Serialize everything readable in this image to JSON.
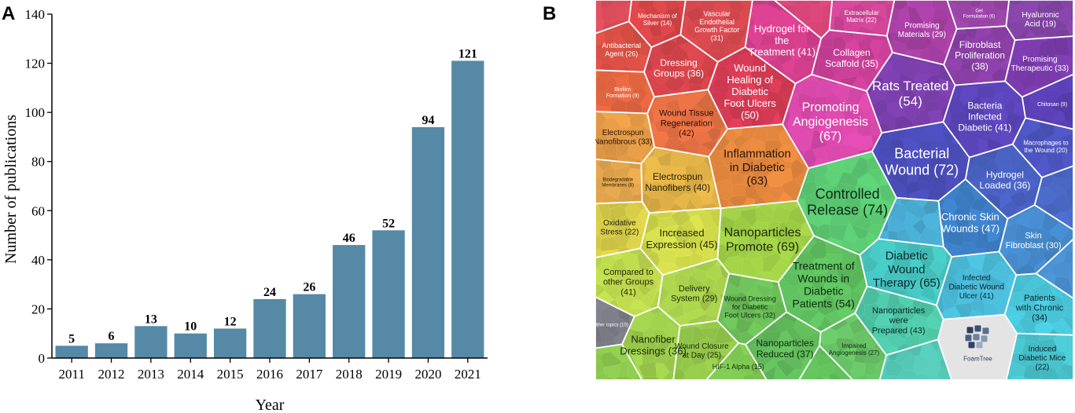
{
  "panel_a_label": "A",
  "panel_b_label": "B",
  "chart_data": [
    {
      "type": "bar",
      "title": "",
      "xlabel": "Year",
      "ylabel": "Number of publications",
      "categories": [
        "2011",
        "2012",
        "2013",
        "2014",
        "2015",
        "2016",
        "2017",
        "2018",
        "2019",
        "2020",
        "2021"
      ],
      "values": [
        5,
        6,
        13,
        10,
        12,
        24,
        26,
        46,
        52,
        94,
        121
      ],
      "ylim": [
        0,
        140
      ],
      "yticks": [
        0,
        20,
        40,
        60,
        80,
        100,
        120,
        140
      ],
      "grid": false,
      "colors": {
        "bar": "#5589a6",
        "axis": "#000000"
      }
    },
    {
      "type": "foamtree",
      "title": "",
      "logo_text": "FoamTree",
      "topics": [
        {
          "label": "Bacterial Wound",
          "count": 72
        },
        {
          "label": "Controlled Release",
          "count": 74
        },
        {
          "label": "Nanoparticles Promote",
          "count": 69
        },
        {
          "label": "Promoting Angiogenesis",
          "count": 67
        },
        {
          "label": "Diabetic Wound Therapy",
          "count": 65
        },
        {
          "label": "Inflammation in Diabetic",
          "count": 63
        },
        {
          "label": "Rats Treated",
          "count": 54
        },
        {
          "label": "Treatment of Wounds in Diabetic Patients",
          "count": 54
        },
        {
          "label": "Wound Healing of Diabetic Foot Ulcers",
          "count": 50
        },
        {
          "label": "Chronic Skin Wounds",
          "count": 47
        },
        {
          "label": "Increased Expression",
          "count": 45
        },
        {
          "label": "Nanoparticles were Prepared",
          "count": 43
        },
        {
          "label": "Wound Tissue Regeneration",
          "count": 42
        },
        {
          "label": "Hydrogel for the Treatment",
          "count": 41
        },
        {
          "label": "Bacteria Infected Diabetic",
          "count": 41
        },
        {
          "label": "Compared to other Groups",
          "count": 41
        },
        {
          "label": "Infected Diabetic Wound Ulcer",
          "count": 41
        },
        {
          "label": "Electrospun Nanofibers",
          "count": 40
        },
        {
          "label": "Fibroblast Proliferation",
          "count": 38
        },
        {
          "label": "Nanoparticles Reduced",
          "count": 37
        },
        {
          "label": "Dressing Groups",
          "count": 36
        },
        {
          "label": "Hydrogel Loaded",
          "count": 36
        },
        {
          "label": "Nanofiber Dressings",
          "count": 36
        },
        {
          "label": "Collagen Scaffold",
          "count": 35
        },
        {
          "label": "Patients with Chronic",
          "count": 34
        },
        {
          "label": "Electrospun Nanofibrous",
          "count": 33
        },
        {
          "label": "Promising Therapeutic",
          "count": 33
        },
        {
          "label": "Wound Dressing for Diabetic Foot Ulcers",
          "count": 32
        },
        {
          "label": "Vascular Endothelial Growth Factor",
          "count": 31
        },
        {
          "label": "Skin Fibroblast",
          "count": 30
        },
        {
          "label": "Delivery System",
          "count": 29
        },
        {
          "label": "Promising Materials",
          "count": 29
        },
        {
          "label": "Impaired Angiogenesis",
          "count": 27
        },
        {
          "label": "Antibacterial Agent",
          "count": 26
        },
        {
          "label": "Wound Closure at Day",
          "count": 25
        },
        {
          "label": "Oxidative Stress",
          "count": 22
        },
        {
          "label": "Extracellular Matrix",
          "count": 22
        },
        {
          "label": "Induced Diabetic Mice",
          "count": 22
        },
        {
          "label": "Hyaluronic Acid",
          "count": 19
        },
        {
          "label": "Macrophages to the Wound",
          "count": 20
        },
        {
          "label": "HIF-1 Alpha",
          "count": 15
        },
        {
          "label": "Mechanism of Silver",
          "count": 14
        },
        {
          "label": "Other topics",
          "count": 10
        },
        {
          "label": "Biofilm Formation",
          "count": 9
        },
        {
          "label": "Biodegradable Membranes",
          "count": 8
        },
        {
          "label": "Chitosan",
          "count": 9
        },
        {
          "label": "Gel Formulation",
          "count": 6
        }
      ]
    }
  ]
}
